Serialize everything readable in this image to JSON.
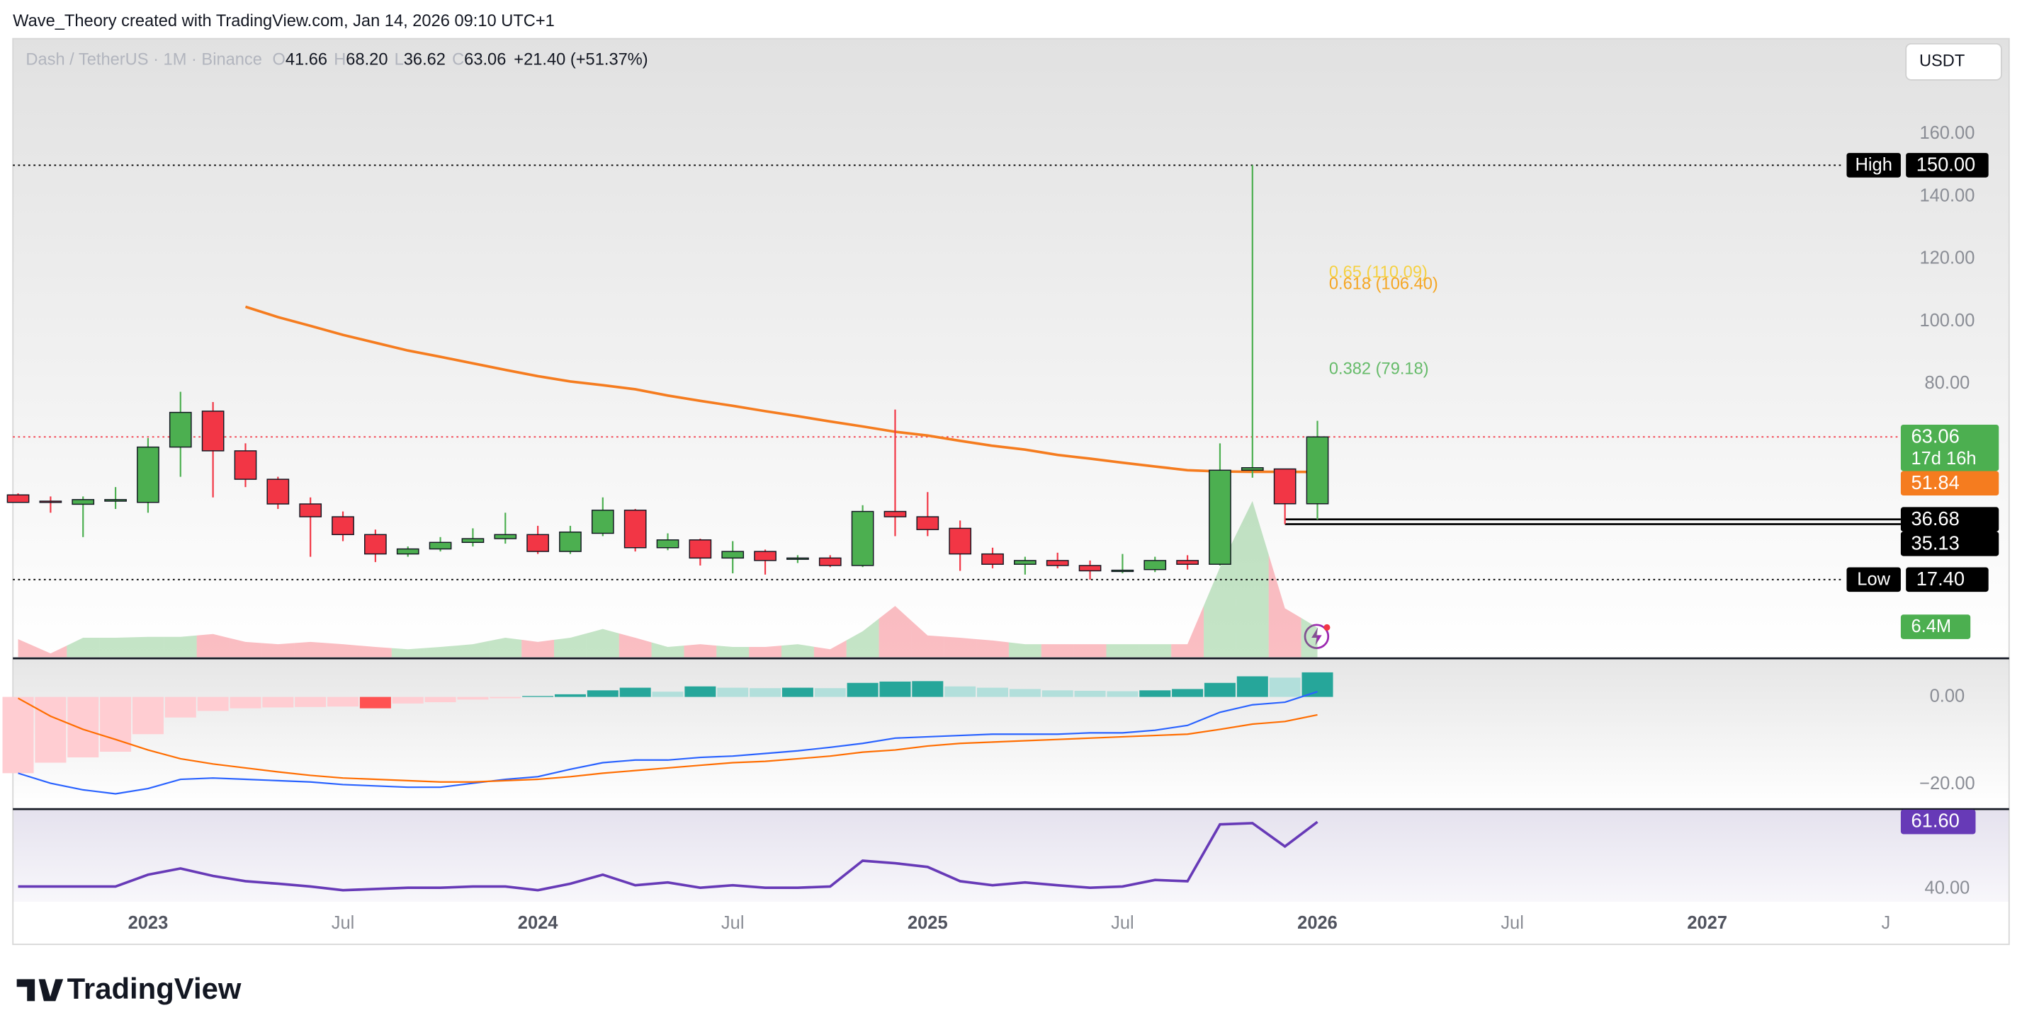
{
  "header": {
    "attribution": "Wave_Theory created with TradingView.com, Jan 14, 2026 09:10 UTC+1"
  },
  "chart_data": {
    "type": "candlestick",
    "legend": {
      "symbol": "Dash / TetherUS · 1M · Binance",
      "items": [
        {
          "key": "O",
          "value": "41.66"
        },
        {
          "key": "H",
          "value": "68.20"
        },
        {
          "key": "L",
          "value": "36.62"
        },
        {
          "key": "C",
          "value": "63.06"
        }
      ],
      "change": "+21.40 (+51.37%)"
    },
    "currency": "USDT",
    "xlim": [
      -0.16,
      57.8
    ],
    "xticks": [
      {
        "value": 4,
        "label": "2023"
      },
      {
        "value": 10,
        "label": "Jul"
      },
      {
        "value": 16,
        "label": "2024"
      },
      {
        "value": 22,
        "label": "Jul"
      },
      {
        "value": 28,
        "label": "2025"
      },
      {
        "value": 34,
        "label": "Jul"
      },
      {
        "value": 40,
        "label": "2026"
      },
      {
        "value": 46,
        "label": "Jul"
      },
      {
        "value": 52,
        "label": "2027"
      },
      {
        "value": 57.5,
        "label": "J"
      }
    ],
    "ylim": [
      -7.4,
      190.5
    ],
    "yticks": [
      {
        "value": 80,
        "label": "80.00"
      },
      {
        "value": 100,
        "label": "100.00"
      },
      {
        "value": 120,
        "label": "120.00"
      },
      {
        "value": 140,
        "label": "140.00"
      },
      {
        "value": 160,
        "label": "160.00"
      }
    ],
    "up_color": "#4caf50",
    "down_color": "#f23645",
    "open": [
      44.5,
      42.5,
      41.5,
      42.5,
      42.1,
      59.8,
      71.3,
      58.6,
      49.5,
      41.6,
      37.5,
      31.8,
      25.6,
      27.2,
      29.3,
      30.5,
      31.8,
      26.4,
      32.2,
      39.6,
      27.6,
      30.1,
      24.3,
      26.4,
      23.9,
      24.3,
      21.9,
      39.2,
      37.5,
      33.8,
      25.6,
      22.3,
      23.5,
      21.9,
      20.2,
      20.6,
      23.5,
      22.3,
      52.4,
      52.8,
      41.66
    ],
    "high": [
      45,
      44,
      44,
      47,
      62.7,
      77.5,
      74.2,
      61,
      50.3,
      43.7,
      39.2,
      33.4,
      28,
      31,
      33.8,
      38.8,
      34.6,
      34.6,
      43.7,
      40,
      32.2,
      30.5,
      29.7,
      27,
      25.2,
      25.2,
      41.2,
      71.8,
      45.4,
      36.3,
      27.6,
      24.7,
      26,
      23.5,
      25.6,
      24.7,
      25.2,
      61,
      150,
      52.8,
      68.2
    ],
    "low": [
      42,
      38.8,
      31,
      40,
      38.8,
      50.3,
      43.7,
      47,
      40,
      24.7,
      29.7,
      23,
      24.7,
      26.4,
      28,
      28.9,
      25.6,
      25.6,
      31.3,
      26.4,
      26.8,
      21.9,
      19.4,
      19,
      22.7,
      21.4,
      21.4,
      31.3,
      31.3,
      20.2,
      21,
      19,
      21,
      17.4,
      19.4,
      19.8,
      20.6,
      21.9,
      50,
      35.13,
      36.62
    ],
    "close": [
      42.1,
      42.3,
      43,
      43,
      59.8,
      70.9,
      58.6,
      49.5,
      41.6,
      37.5,
      31.8,
      25.6,
      27.2,
      29.3,
      30.5,
      31.8,
      26.4,
      32.6,
      39.6,
      27.6,
      30.1,
      24.3,
      26.4,
      23.5,
      24.3,
      21.9,
      39.2,
      37.5,
      33.4,
      25.6,
      22.3,
      23.5,
      21.9,
      20.2,
      20.4,
      23.5,
      22.3,
      52.4,
      53.2,
      41.66,
      63.06
    ],
    "ma": {
      "color": "#f57c1f",
      "values": [
        null,
        null,
        null,
        null,
        null,
        null,
        null,
        104.7,
        101.4,
        98.6,
        95.7,
        93.2,
        90.7,
        88.7,
        86.6,
        84.5,
        82.5,
        80.8,
        79.6,
        78.3,
        76.3,
        74.6,
        73.0,
        71.3,
        69.7,
        68.0,
        66.4,
        64.7,
        63.5,
        61.8,
        60.2,
        59.0,
        57.3,
        56.1,
        54.8,
        53.6,
        52.4,
        52.0,
        51.9,
        51.9,
        51.84
      ]
    },
    "fib_levels": [
      {
        "price": 110.09,
        "label": "0.65 (110.09)",
        "color": "#f5d142"
      },
      {
        "price": 106.4,
        "label": "0.618 (106.40)",
        "color": "#f5a623"
      },
      {
        "price": 79.18,
        "label": "0.382 (79.18)",
        "color": "#66bb6a"
      }
    ],
    "price_labels": [
      {
        "caption": "High",
        "value": 150,
        "label": "150.00",
        "color": "#000000",
        "line": "dotted",
        "line_color": "#000000"
      },
      {
        "value": 63.06,
        "label": "63.06",
        "sublabel": "17d 16h",
        "color": "#4caf50",
        "line": "dotted",
        "line_color": "#f23645"
      },
      {
        "value": 51.84,
        "label": "51.84",
        "color": "#f57c1f"
      },
      {
        "value": 36.68,
        "label": "36.68",
        "color": "#000000",
        "line": "solid",
        "line_color": "#000000"
      },
      {
        "value": 35.13,
        "label": "35.13",
        "color": "#000000",
        "line": "solid",
        "line_color": "#000000"
      },
      {
        "caption": "Low",
        "value": 17.4,
        "label": "17.40",
        "color": "#000000",
        "line": "dotted",
        "line_color": "#000000"
      }
    ],
    "volume": {
      "ylim": [
        0,
        35
      ],
      "values": [
        3.9,
        0.8,
        4.2,
        4.2,
        4.4,
        4.4,
        5.0,
        3.3,
        2.8,
        3.3,
        2.8,
        2.2,
        1.7,
        2.2,
        2.8,
        4.2,
        3.3,
        4.2,
        6.1,
        4.2,
        2.2,
        2.8,
        2.2,
        2.2,
        2.8,
        1.7,
        5.6,
        11.1,
        4.7,
        4.2,
        3.6,
        2.8,
        2.8,
        2.8,
        2.8,
        2.8,
        2.8,
        19.5,
        33.9,
        10.6,
        6.4
      ],
      "last_label": "6.4M"
    },
    "macd": {
      "ylim": [
        -25.3,
        8.5
      ],
      "yticks": [
        {
          "value": 0,
          "label": "0.00"
        },
        {
          "value": -20,
          "label": "−20.00"
        }
      ],
      "histogram": [
        -17.4,
        -15.0,
        -13.8,
        -12.5,
        -8.5,
        -4.7,
        -3.2,
        -2.6,
        -2.4,
        -2.3,
        -2.2,
        -2.6,
        -1.5,
        -1.2,
        -0.6,
        -0.3,
        0.2,
        0.6,
        1.5,
        2.1,
        1.2,
        2.4,
        2.1,
        2.0,
        2.1,
        2.0,
        3.2,
        3.5,
        3.6,
        2.4,
        2.1,
        1.8,
        1.5,
        1.4,
        1.3,
        1.5,
        1.8,
        3.2,
        4.7,
        4.4,
        5.6
      ],
      "macd": {
        "color": "#2962ff",
        "values": [
          -17.4,
          -19.7,
          -21.2,
          -22.1,
          -20.9,
          -18.8,
          -18.5,
          -18.8,
          -19.1,
          -19.4,
          -20.0,
          -20.3,
          -20.6,
          -20.6,
          -19.7,
          -18.8,
          -18.2,
          -16.5,
          -15.0,
          -14.4,
          -14.4,
          -13.8,
          -13.5,
          -12.9,
          -12.3,
          -11.5,
          -10.6,
          -9.4,
          -9.1,
          -8.8,
          -8.5,
          -8.5,
          -8.5,
          -8.2,
          -8.2,
          -7.6,
          -6.5,
          -3.5,
          -1.8,
          -1.2,
          1.2
        ]
      },
      "signal": {
        "color": "#ff6d00",
        "values": [
          -0.3,
          -4.4,
          -7.4,
          -9.7,
          -12.1,
          -14.1,
          -15.3,
          -16.2,
          -17.1,
          -17.9,
          -18.5,
          -18.8,
          -19.1,
          -19.4,
          -19.4,
          -19.1,
          -18.8,
          -18.2,
          -17.4,
          -16.8,
          -16.2,
          -15.6,
          -15.0,
          -14.7,
          -14.1,
          -13.5,
          -12.6,
          -12.1,
          -11.2,
          -10.6,
          -10.3,
          -10.0,
          -9.7,
          -9.4,
          -9.1,
          -8.8,
          -8.5,
          -7.4,
          -6.2,
          -5.6,
          -4.1
        ]
      }
    },
    "rsi": {
      "ylim": [
        35.85,
        65.3
      ],
      "yticks": [
        {
          "value": 40,
          "label": "40.00"
        }
      ],
      "color": "#673ab7",
      "values": [
        40.8,
        40.8,
        40.8,
        40.8,
        44.6,
        46.6,
        44.2,
        42.5,
        41.7,
        40.8,
        39.6,
        40.0,
        40.4,
        40.4,
        40.8,
        40.8,
        39.6,
        41.7,
        44.6,
        41.2,
        42.1,
        40.4,
        41.2,
        40.4,
        40.4,
        40.8,
        49.1,
        48.3,
        47.1,
        42.5,
        41.2,
        42.1,
        41.2,
        40.4,
        40.8,
        42.9,
        42.5,
        60.8,
        61.2,
        53.7,
        61.6
      ],
      "last_label": "61.60"
    }
  },
  "footer": {
    "brand": "TradingView"
  }
}
